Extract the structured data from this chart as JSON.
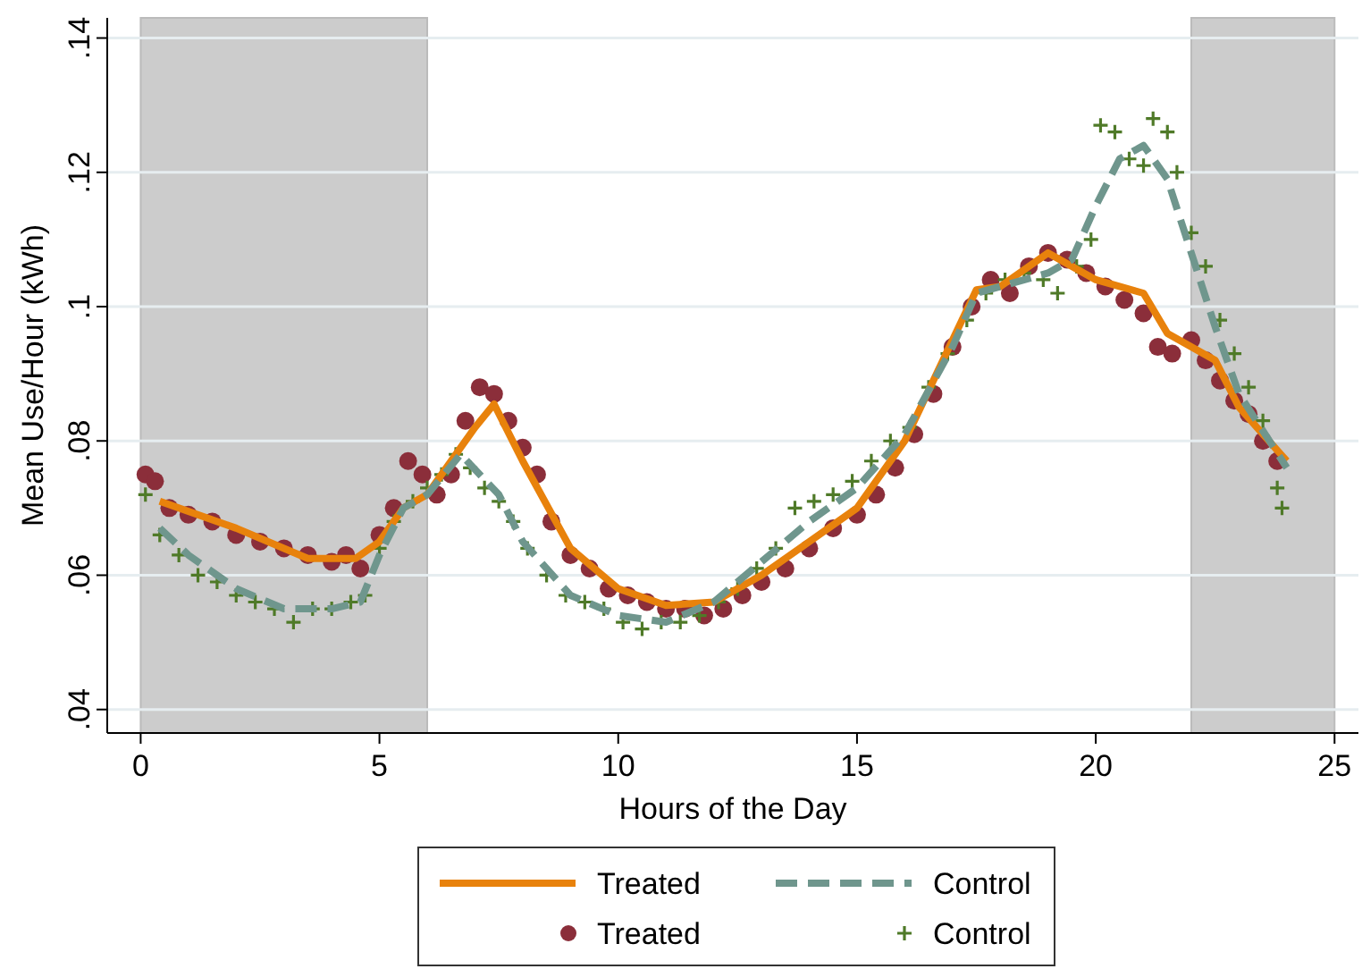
{
  "chart_data": {
    "type": "line",
    "xlabel": "Hours of the Day",
    "ylabel": "Mean Use/Hour (kWh)",
    "xlim": [
      -0.7,
      25.5
    ],
    "xticks": [
      0,
      5,
      10,
      15,
      20,
      25
    ],
    "ylim": [
      0.0365,
      0.143
    ],
    "yticks": [
      {
        "value": 0.04,
        "label": ".04"
      },
      {
        "value": 0.06,
        "label": ".06"
      },
      {
        "value": 0.08,
        "label": ".08"
      },
      {
        "value": 0.1,
        "label": ".1"
      },
      {
        "value": 0.12,
        "label": ".12"
      },
      {
        "value": 0.14,
        "label": ".14"
      }
    ],
    "grid": "y",
    "legend": "bottom",
    "bands": [
      {
        "axis": "x",
        "from": 0,
        "to": 6,
        "color": "#cccccc"
      },
      {
        "axis": "x",
        "from": 22,
        "to": 25,
        "color": "#cccccc"
      }
    ],
    "series": [
      {
        "name": "Treated",
        "color": "#e8820c",
        "line_style": "solid",
        "x": [
          0.4,
          2,
          3.5,
          4.5,
          5,
          5.5,
          6,
          7,
          7.4,
          8,
          9,
          10,
          11,
          12,
          13,
          14,
          15,
          16,
          17,
          17.5,
          18,
          19,
          20,
          21,
          21.5,
          22,
          22.5,
          23,
          24
        ],
        "values": [
          0.071,
          0.067,
          0.0625,
          0.0625,
          0.065,
          0.07,
          0.072,
          0.082,
          0.0855,
          0.077,
          0.064,
          0.058,
          0.0555,
          0.056,
          0.06,
          0.065,
          0.07,
          0.08,
          0.095,
          0.1025,
          0.103,
          0.108,
          0.104,
          0.102,
          0.096,
          0.094,
          0.092,
          0.085,
          0.077
        ]
      },
      {
        "name": "Control",
        "color": "#6f968d",
        "line_style": "dashed",
        "x": [
          0.4,
          1,
          2,
          3,
          4,
          4.6,
          5,
          5.5,
          6,
          6.7,
          7.5,
          8,
          9,
          10,
          11,
          12,
          13,
          14,
          15,
          16,
          17,
          17.5,
          18,
          19,
          19.5,
          20,
          20.5,
          21,
          21.5,
          22,
          22.5,
          23,
          24
        ],
        "values": [
          0.067,
          0.063,
          0.058,
          0.055,
          0.055,
          0.056,
          0.063,
          0.07,
          0.072,
          0.078,
          0.072,
          0.065,
          0.057,
          0.054,
          0.053,
          0.056,
          0.062,
          0.068,
          0.073,
          0.081,
          0.094,
          0.102,
          0.103,
          0.105,
          0.107,
          0.115,
          0.122,
          0.124,
          0.119,
          0.108,
          0.097,
          0.087,
          0.076
        ]
      },
      {
        "name": "Treated",
        "type": "scatter",
        "marker": "circle",
        "color": "#8b2e3a",
        "x": [
          0.1,
          0.3,
          0.6,
          1,
          1.5,
          2,
          2.5,
          3,
          3.5,
          4,
          4.3,
          4.6,
          5,
          5.3,
          5.6,
          5.9,
          6.2,
          6.5,
          6.8,
          7.1,
          7.4,
          7.7,
          8,
          8.3,
          8.6,
          9,
          9.4,
          9.8,
          10.2,
          10.6,
          11,
          11.4,
          11.8,
          12.2,
          12.6,
          13,
          13.5,
          14,
          14.5,
          15,
          15.4,
          15.8,
          16.2,
          16.6,
          17,
          17.4,
          17.8,
          18.2,
          18.6,
          19,
          19.4,
          19.8,
          20.2,
          20.6,
          21,
          21.3,
          21.6,
          22,
          22.3,
          22.6,
          22.9,
          23.2,
          23.5,
          23.8
        ],
        "values": [
          0.075,
          0.074,
          0.07,
          0.069,
          0.068,
          0.066,
          0.065,
          0.064,
          0.063,
          0.062,
          0.063,
          0.061,
          0.066,
          0.07,
          0.077,
          0.075,
          0.072,
          0.075,
          0.083,
          0.088,
          0.087,
          0.083,
          0.079,
          0.075,
          0.068,
          0.063,
          0.061,
          0.058,
          0.057,
          0.056,
          0.055,
          0.055,
          0.054,
          0.055,
          0.057,
          0.059,
          0.061,
          0.064,
          0.067,
          0.069,
          0.072,
          0.076,
          0.081,
          0.087,
          0.094,
          0.1,
          0.104,
          0.102,
          0.106,
          0.108,
          0.107,
          0.105,
          0.103,
          0.101,
          0.099,
          0.094,
          0.093,
          0.095,
          0.092,
          0.089,
          0.086,
          0.084,
          0.08,
          0.077
        ]
      },
      {
        "name": "Control",
        "type": "scatter",
        "marker": "cross",
        "color": "#4f7a28",
        "x": [
          0.1,
          0.4,
          0.8,
          1.2,
          1.6,
          2,
          2.4,
          2.8,
          3.2,
          3.6,
          4,
          4.4,
          4.7,
          5,
          5.3,
          5.7,
          6,
          6.3,
          6.6,
          6.9,
          7.2,
          7.5,
          7.8,
          8.1,
          8.5,
          8.9,
          9.3,
          9.7,
          10.1,
          10.5,
          10.9,
          11.3,
          11.7,
          12.1,
          12.5,
          12.9,
          13.3,
          13.7,
          14.1,
          14.5,
          14.9,
          15.3,
          15.7,
          16.1,
          16.5,
          16.9,
          17.3,
          17.7,
          18.1,
          18.5,
          18.9,
          19.2,
          19.6,
          19.9,
          20.1,
          20.4,
          20.7,
          21,
          21.2,
          21.5,
          21.7,
          22,
          22.3,
          22.6,
          22.9,
          23.2,
          23.5,
          23.8,
          23.9
        ],
        "values": [
          0.072,
          0.066,
          0.063,
          0.06,
          0.059,
          0.057,
          0.056,
          0.055,
          0.053,
          0.055,
          0.055,
          0.056,
          0.057,
          0.064,
          0.068,
          0.071,
          0.073,
          0.075,
          0.078,
          0.076,
          0.073,
          0.071,
          0.068,
          0.064,
          0.06,
          0.057,
          0.056,
          0.055,
          0.053,
          0.052,
          0.053,
          0.053,
          0.054,
          0.056,
          0.058,
          0.061,
          0.064,
          0.07,
          0.071,
          0.072,
          0.074,
          0.077,
          0.08,
          0.082,
          0.088,
          0.093,
          0.098,
          0.102,
          0.104,
          0.105,
          0.104,
          0.102,
          0.106,
          0.11,
          0.127,
          0.126,
          0.122,
          0.121,
          0.128,
          0.126,
          0.12,
          0.111,
          0.106,
          0.098,
          0.093,
          0.088,
          0.083,
          0.073,
          0.07
        ]
      }
    ]
  }
}
